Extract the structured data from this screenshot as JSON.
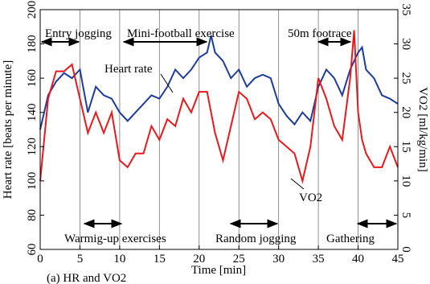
{
  "chart_data": {
    "type": "line",
    "caption": "(a) HR and VO2",
    "xlabel": "Time [min]",
    "ylabel": "Heart rate [beats per minute]",
    "y2label": "VO2 [ml/kg/min]",
    "x": [
      0,
      1,
      2,
      3,
      4,
      5,
      6,
      7,
      8,
      9,
      10,
      11,
      12,
      13,
      14,
      15,
      16,
      17,
      18,
      19,
      20,
      21,
      21.5,
      22,
      23,
      24,
      25,
      26,
      27,
      28,
      29,
      30,
      31,
      32,
      33,
      34,
      35,
      36,
      37,
      38,
      39,
      39.5,
      40,
      40.5,
      41,
      42,
      43,
      44,
      45
    ],
    "series": [
      {
        "name": "Heart rate",
        "color": "#1f3c9a",
        "axis": "y",
        "values": [
          130,
          150,
          158,
          163,
          160,
          165,
          140,
          155,
          150,
          148,
          140,
          135,
          140,
          145,
          150,
          148,
          155,
          165,
          160,
          165,
          172,
          175,
          185,
          175,
          170,
          160,
          165,
          155,
          160,
          162,
          160,
          145,
          138,
          133,
          140,
          135,
          155,
          165,
          160,
          150,
          165,
          170,
          175,
          178,
          165,
          160,
          150,
          148,
          145
        ]
      },
      {
        "name": "VO2",
        "color": "#e8191e",
        "axis": "y2",
        "values": [
          10,
          22,
          26,
          26,
          27,
          22,
          17,
          20,
          17,
          20,
          13,
          12,
          14,
          14,
          18,
          16,
          19,
          18,
          22,
          20,
          23,
          23,
          20,
          17,
          13,
          18,
          23,
          22,
          19,
          20,
          19,
          16,
          15,
          14,
          10,
          15,
          25,
          22,
          18,
          16,
          25,
          32,
          20,
          16,
          14,
          12,
          12,
          15,
          12
        ]
      }
    ],
    "phases_top": [
      "Entry jogging",
      "Mini-football exercise",
      "50m footrace"
    ],
    "phases_bottom": [
      "Warmig-up exercises",
      "Random jogging",
      "Gathering"
    ],
    "xlim": [
      0,
      45
    ],
    "xticks": [
      0,
      5,
      10,
      15,
      20,
      25,
      30,
      35,
      40,
      45
    ],
    "ylim": [
      60,
      200
    ],
    "yticks": [
      60,
      80,
      100,
      120,
      140,
      160,
      180,
      200
    ],
    "y2lim": [
      0,
      35
    ],
    "y2ticks": [
      0,
      5,
      10,
      15,
      20,
      25,
      30,
      35
    ],
    "grid": "x"
  }
}
